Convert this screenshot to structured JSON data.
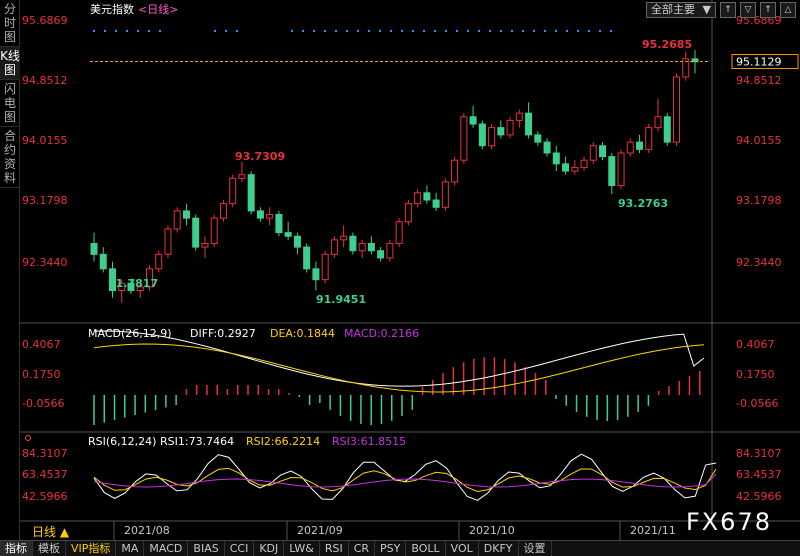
{
  "sidebar": {
    "items": [
      {
        "label": "分时图"
      },
      {
        "label": "K线图"
      },
      {
        "label": "闪电图"
      },
      {
        "label": "合约资料"
      }
    ]
  },
  "toolbar": {
    "dropdown_label": "全部主要",
    "buttons": [
      "↑",
      "▽",
      "↑",
      "△"
    ]
  },
  "header": {
    "title": "美元指数",
    "period": "<日线>",
    "macd_label": "MACD(26,12,9)",
    "diff_label": "DIFF:0.2927",
    "dea_label": "DEA:0.1844",
    "macd_value_label": "MACD:0.2166",
    "rsi_label": "RSI(6,12,24)",
    "rsi1_label": "RSI1:73.7464",
    "rsi2_label": "RSI2:66.2214",
    "rsi3_label": "RSI3:61.8515"
  },
  "colors": {
    "up": "#e8313c",
    "down": "#3ecf8e",
    "diff": "#ffffff",
    "dea": "#ffd400",
    "rsi1": "#ffffff",
    "rsi2": "#ffd400",
    "rsi3": "#c832e6",
    "axis_text": "#e8313c",
    "current_price_line": "#ff9900"
  },
  "chart_data": {
    "type": "candlestick",
    "price_ticks": [
      "95.6869",
      "94.8512",
      "94.0155",
      "93.1798",
      "92.3440"
    ],
    "current_price": "95.1129",
    "macd_ticks": [
      "0.4067",
      "0.1750",
      "-0.0566"
    ],
    "rsi_ticks": [
      "84.3107",
      "63.4537",
      "42.5966"
    ],
    "x_labels": [
      "2021/08",
      "2021/09",
      "2021/10",
      "2021/11"
    ],
    "annotations": [
      {
        "text": "91.7817",
        "kind": "low"
      },
      {
        "text": "93.7309",
        "kind": "high"
      },
      {
        "text": "91.9451",
        "kind": "low"
      },
      {
        "text": "93.2763",
        "kind": "low"
      },
      {
        "text": "95.2685",
        "kind": "high"
      }
    ]
  },
  "period_tab": "日线 ▲",
  "bottom_tabs": [
    "指标",
    "模板",
    "VIP指标",
    "MA",
    "MACD",
    "BIAS",
    "CCI",
    "KDJ",
    "LW&",
    "RSI",
    "CR",
    "PSY",
    "BOLL",
    "VOL",
    "DKFY",
    "设置"
  ],
  "brand": "FX678"
}
